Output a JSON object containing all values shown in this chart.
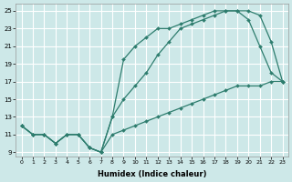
{
  "xlabel": "Humidex (Indice chaleur)",
  "bg_color": "#cde8e8",
  "grid_color": "#ffffff",
  "line_color": "#2e7d6e",
  "xlim": [
    -0.5,
    23.5
  ],
  "ylim": [
    8.5,
    25.8
  ],
  "xticks": [
    0,
    1,
    2,
    3,
    4,
    5,
    6,
    7,
    8,
    9,
    10,
    11,
    12,
    13,
    14,
    15,
    16,
    17,
    18,
    19,
    20,
    21,
    22,
    23
  ],
  "yticks": [
    9,
    11,
    13,
    15,
    17,
    19,
    21,
    23,
    25
  ],
  "line1_x": [
    0,
    1,
    2,
    3,
    4,
    5,
    6,
    7,
    8,
    9,
    10,
    11,
    12,
    13,
    14,
    15,
    16,
    17,
    18,
    19,
    20,
    21,
    22,
    23
  ],
  "line1_y": [
    12,
    11,
    11,
    10,
    11,
    11,
    9.5,
    9,
    13,
    19.5,
    21,
    22,
    23,
    23,
    23.5,
    24,
    24.5,
    25,
    25,
    25,
    24,
    21,
    18,
    17
  ],
  "line2_x": [
    0,
    1,
    2,
    3,
    4,
    5,
    6,
    7,
    8,
    9,
    10,
    11,
    12,
    13,
    14,
    15,
    16,
    17,
    18,
    19,
    20,
    21,
    22,
    23
  ],
  "line2_y": [
    12,
    11,
    11,
    10,
    11,
    11,
    9.5,
    9,
    13,
    15,
    16.5,
    18,
    20,
    21.5,
    23,
    23.5,
    24,
    24.5,
    25,
    25,
    25,
    24.5,
    21.5,
    17
  ],
  "line3_x": [
    0,
    1,
    2,
    3,
    4,
    5,
    6,
    7,
    8,
    9,
    10,
    11,
    12,
    13,
    14,
    15,
    16,
    17,
    18,
    19,
    20,
    21,
    22,
    23
  ],
  "line3_y": [
    12,
    11,
    11,
    10,
    11,
    11,
    9.5,
    9,
    11,
    11.5,
    12,
    12.5,
    13,
    13.5,
    14,
    14.5,
    15,
    15.5,
    16,
    16.5,
    16.5,
    16.5,
    17,
    17
  ]
}
